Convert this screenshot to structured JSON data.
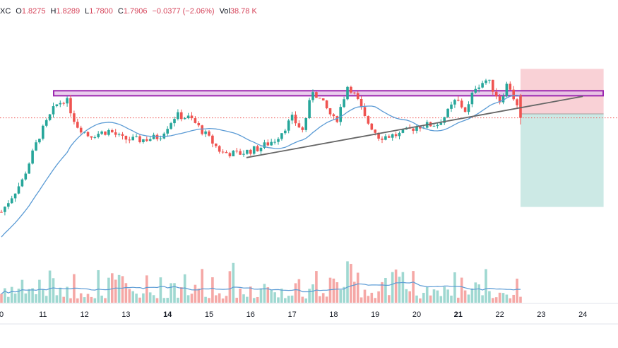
{
  "header": {
    "symbol_fragment": "XC",
    "open_label": "O",
    "open": "1.8275",
    "high_label": "H",
    "high": "1.8289",
    "low_label": "L",
    "low": "1.7800",
    "close_label": "C",
    "close": "1.7906",
    "change": "−0.0377 (−2.06%)",
    "vol_label": "Vol",
    "volume": "38.78 K"
  },
  "chart_data": {
    "type": "candlestick",
    "x_ticks": [
      {
        "label": "0",
        "bold": false
      },
      {
        "label": "11",
        "bold": false
      },
      {
        "label": "12",
        "bold": false
      },
      {
        "label": "13",
        "bold": false
      },
      {
        "label": "14",
        "bold": true
      },
      {
        "label": "15",
        "bold": false
      },
      {
        "label": "16",
        "bold": false
      },
      {
        "label": "17",
        "bold": false
      },
      {
        "label": "18",
        "bold": false
      },
      {
        "label": "19",
        "bold": false
      },
      {
        "label": "20",
        "bold": false
      },
      {
        "label": "21",
        "bold": true
      },
      {
        "label": "22",
        "bold": false
      },
      {
        "label": "23",
        "bold": false
      },
      {
        "label": "24",
        "bold": false
      }
    ],
    "y_range_estimate": [
      1.6,
      1.9
    ],
    "last_close": 1.7906,
    "resistance_zone": {
      "low": 1.826,
      "high": 1.834
    },
    "trendline": {
      "from": {
        "day": 15.9,
        "price": 1.727
      },
      "to": {
        "day": 24.0,
        "price": 1.825
      }
    },
    "moving_average": "blue line (price and volume)",
    "position_box": {
      "entry": 1.797,
      "stop_loss": 1.869,
      "take_profit": 1.648,
      "from_day": 22.5,
      "to_day": 24.5
    },
    "volume_ma": "blue line",
    "colors": {
      "up": "#26a69a",
      "down": "#ef5350",
      "ma": "#5b9bd5",
      "zone_border": "#9c27b0",
      "zone_fill": "#e1bee7",
      "stop_fill": "#f8c9cf",
      "target_fill": "#c6e7e2",
      "trendline": "#666666",
      "price_line": "#ef5350"
    }
  }
}
